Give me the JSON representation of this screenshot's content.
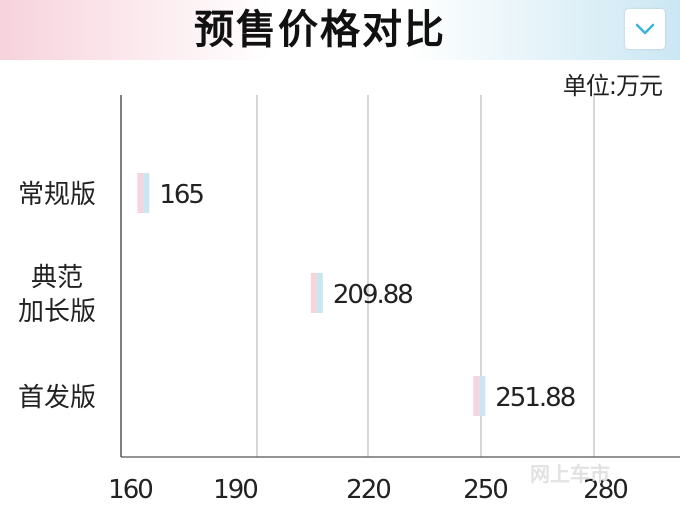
{
  "header": {
    "title": "预售价格对比"
  },
  "unit_label": "单位:万元",
  "watermark": "网上车市",
  "colors": {
    "bar_pink": "#f7d3dc",
    "bar_blue": "#c9e6f3",
    "grid": "#bcbcbc",
    "axis": "#555555",
    "text": "#222222"
  },
  "chart_data": {
    "type": "bar",
    "orientation": "horizontal",
    "categories": [
      [
        "常规版"
      ],
      [
        "典范",
        "加长版"
      ],
      [
        "首发版"
      ]
    ],
    "values": [
      165,
      209.88,
      251.88
    ],
    "value_labels": [
      "165",
      "209.88",
      "251.88"
    ],
    "xlim": [
      160,
      280
    ],
    "xticks": [
      160,
      190,
      220,
      250,
      280
    ],
    "xtick_labels": [
      "160",
      "190",
      "220",
      "250",
      "280"
    ],
    "grid": true,
    "title": "预售价格对比",
    "unit": "单位:万元"
  }
}
